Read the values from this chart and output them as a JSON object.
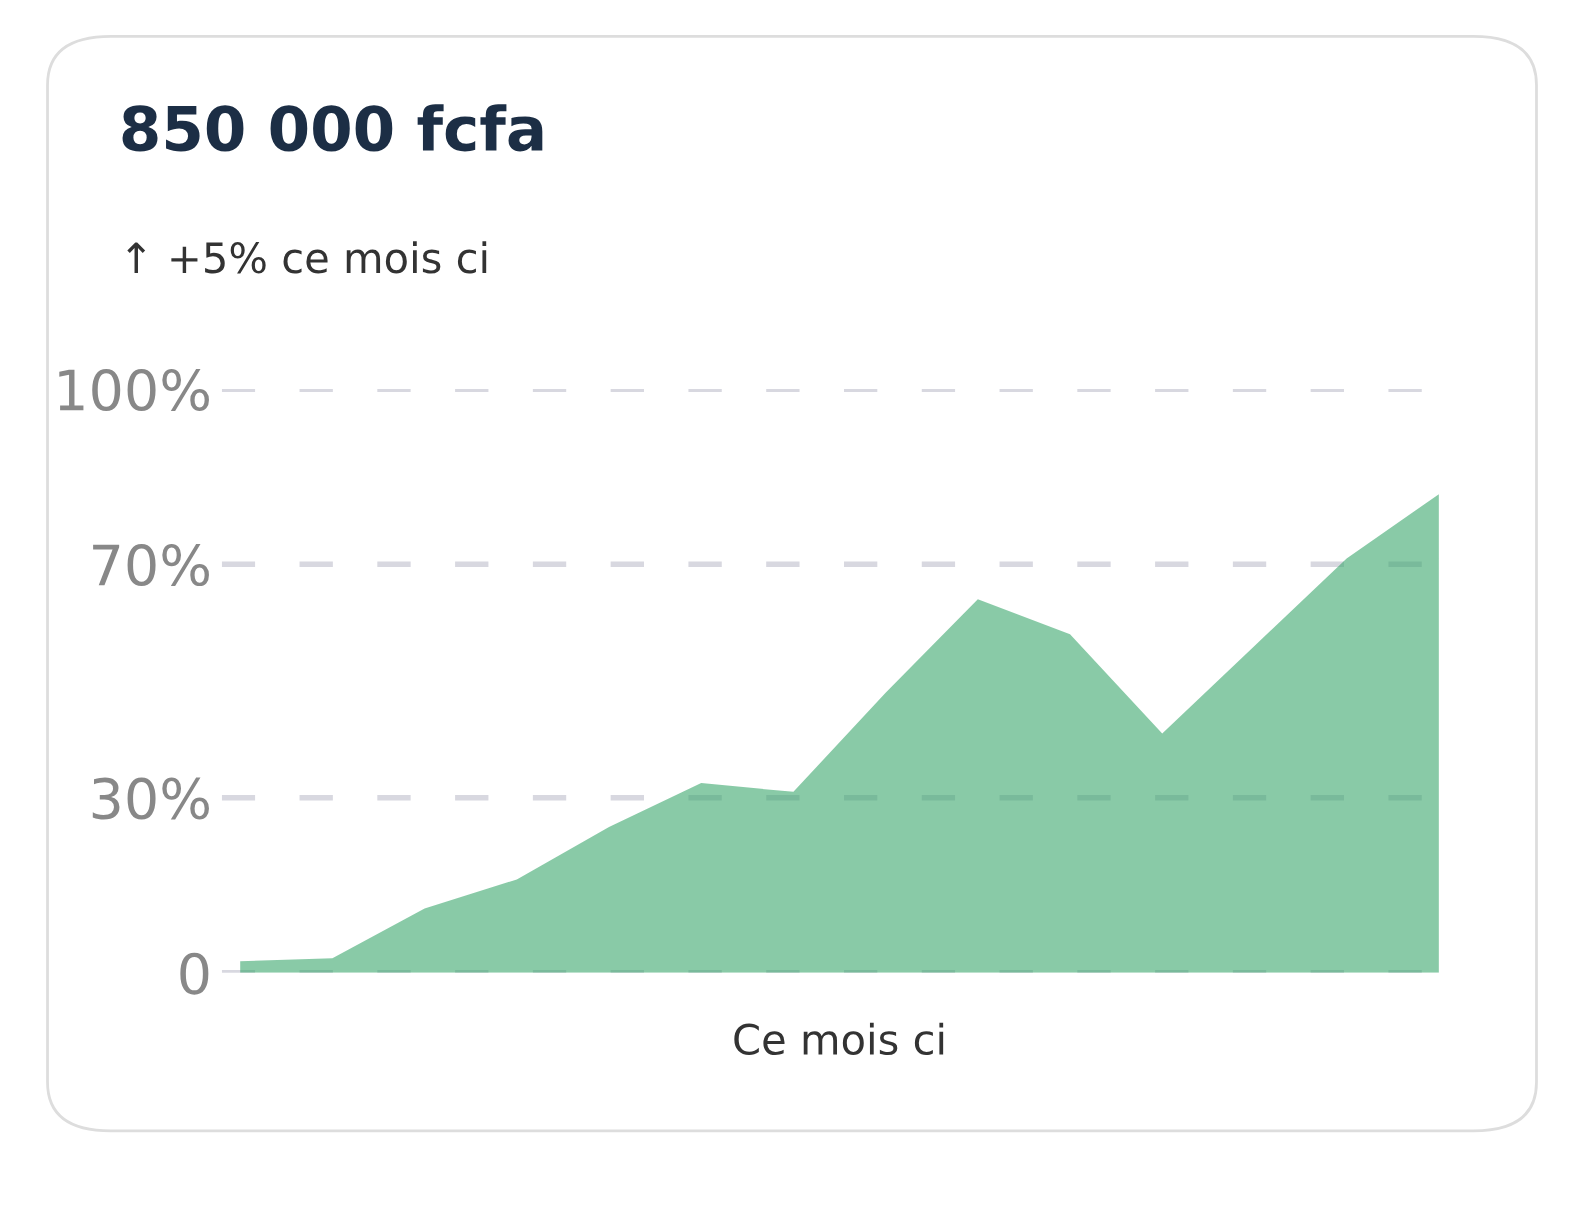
{
  "chart_data": {
    "type": "area",
    "title": "850 000 fcfa",
    "subtitle": "↑ +5% ce mois ci",
    "xlabel": "Ce mois ci",
    "categories": [
      null,
      null,
      null,
      null,
      null,
      null,
      null,
      null,
      null,
      null,
      null,
      null,
      null,
      null
    ],
    "series": [
      {
        "color": "#3aa76d",
        "values": [
          2,
          2.5,
          11,
          16,
          25,
          32.5,
          31,
          48,
          64,
          58,
          41,
          56,
          71,
          82
        ]
      }
    ],
    "ylim": [
      0,
      100
    ],
    "yticks": [
      0,
      {
        "value": 30,
        "label": "30%"
      },
      {
        "value": 70,
        "label": "70%"
      },
      {
        "value": 100,
        "label": "100%"
      }
    ],
    "grid": "y",
    "tick_labels": "y"
  }
}
